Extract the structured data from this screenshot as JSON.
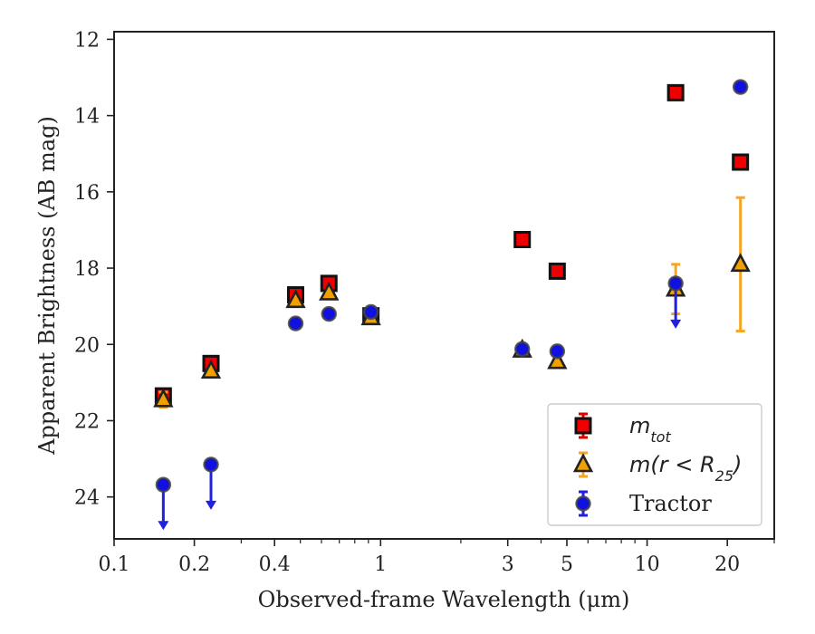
{
  "chart_data": {
    "type": "scatter",
    "xlabel": "Observed-frame Wavelength (μm)",
    "ylabel": "Apparent Brightness (AB mag)",
    "xscale": "log",
    "xlim": [
      0.1,
      30
    ],
    "ylim": [
      25.1,
      11.8
    ],
    "y_inverted": true,
    "x_ticks": [
      {
        "value": 0.1,
        "label": "0.1"
      },
      {
        "value": 0.2,
        "label": "0.2"
      },
      {
        "value": 0.4,
        "label": "0.4"
      },
      {
        "value": 1,
        "label": "1"
      },
      {
        "value": 3,
        "label": "3"
      },
      {
        "value": 5,
        "label": "5"
      },
      {
        "value": 10,
        "label": "10"
      },
      {
        "value": 20,
        "label": "20"
      }
    ],
    "x_minor_ticks": [
      0.3,
      0.5,
      0.6,
      0.7,
      0.8,
      0.9,
      2,
      4,
      6,
      7,
      8,
      9,
      30
    ],
    "y_ticks": [
      {
        "value": 12,
        "label": "12"
      },
      {
        "value": 14,
        "label": "14"
      },
      {
        "value": 16,
        "label": "16"
      },
      {
        "value": 18,
        "label": "18"
      },
      {
        "value": 20,
        "label": "20"
      },
      {
        "value": 22,
        "label": "22"
      },
      {
        "value": 24,
        "label": "24"
      }
    ],
    "legend_position": "lower-right",
    "series": [
      {
        "id": "mtot",
        "marker": "square",
        "face_color": "#ee0000",
        "edge_color": "#111111",
        "error_color": "#dd0000",
        "points": [
          {
            "x": 0.153,
            "y": 21.35,
            "err": 0.15
          },
          {
            "x": 0.231,
            "y": 20.5,
            "err": 0.1
          },
          {
            "x": 0.48,
            "y": 18.7,
            "err": 0.05
          },
          {
            "x": 0.64,
            "y": 18.4,
            "err": 0.05
          },
          {
            "x": 0.92,
            "y": 19.25,
            "err": 0.05
          },
          {
            "x": 3.4,
            "y": 17.25,
            "err": 0.05
          },
          {
            "x": 4.6,
            "y": 18.08,
            "err": 0.05
          },
          {
            "x": 12.8,
            "y": 13.4,
            "err": 0.05
          },
          {
            "x": 22.4,
            "y": 15.22,
            "err": 0.05
          }
        ]
      },
      {
        "id": "mr25",
        "marker": "triangle",
        "face_color": "#f0a000",
        "edge_color": "#222222",
        "error_color": "#f5a623",
        "points": [
          {
            "x": 0.153,
            "y": 21.45,
            "err": 0.2
          },
          {
            "x": 0.231,
            "y": 20.7,
            "err": 0.1
          },
          {
            "x": 0.48,
            "y": 18.85,
            "err": 0.05
          },
          {
            "x": 0.64,
            "y": 18.65,
            "err": 0.05
          },
          {
            "x": 0.92,
            "y": 19.3,
            "err": 0.05
          },
          {
            "x": 3.4,
            "y": 20.15,
            "err": 0.05
          },
          {
            "x": 4.6,
            "y": 20.45,
            "err": 0.05
          },
          {
            "x": 12.8,
            "y": 18.55,
            "err": 0.65
          },
          {
            "x": 22.4,
            "y": 17.9,
            "err": 1.75
          }
        ]
      },
      {
        "id": "tractor",
        "marker": "circle",
        "face_color": "#1010e0",
        "edge_color": "#444444",
        "error_color": "#2020e0",
        "points": [
          {
            "x": 0.153,
            "y": 23.68,
            "upper_limit": true
          },
          {
            "x": 0.231,
            "y": 23.15,
            "upper_limit": true
          },
          {
            "x": 0.48,
            "y": 19.45,
            "err": 0.05
          },
          {
            "x": 0.64,
            "y": 19.2,
            "err": 0.05
          },
          {
            "x": 0.92,
            "y": 19.15,
            "err": 0.05
          },
          {
            "x": 3.4,
            "y": 20.12,
            "err": 0.05
          },
          {
            "x": 4.6,
            "y": 20.18,
            "err": 0.05
          },
          {
            "x": 12.8,
            "y": 18.4,
            "upper_limit": true
          },
          {
            "x": 22.4,
            "y": 13.25,
            "err": 0.05
          }
        ]
      }
    ],
    "legend": [
      {
        "series": "mtot",
        "math": "m",
        "sub": "tot",
        "suffix": ""
      },
      {
        "series": "mr25",
        "math": "m",
        "sub": "25",
        "suffix": "(r < R"
      },
      {
        "series": "tractor",
        "text": "Tractor"
      }
    ]
  }
}
